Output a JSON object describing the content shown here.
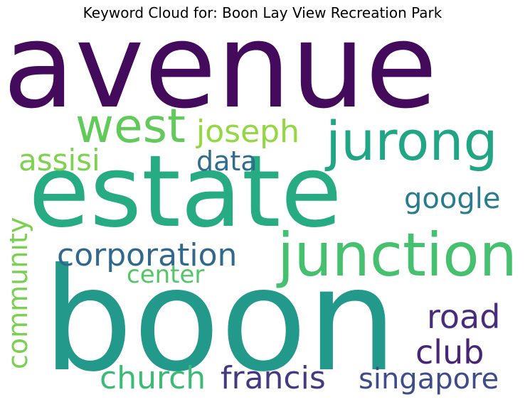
{
  "title": "Keyword Cloud for: Boon Lay View Recreation Park",
  "words": [
    {
      "text": "avenue",
      "color": "#440a5c"
    },
    {
      "text": "estate",
      "color": "#27ab82"
    },
    {
      "text": "boon",
      "color": "#22998a"
    },
    {
      "text": "junction",
      "color": "#45c06f"
    },
    {
      "text": "jurong",
      "color": "#21a685"
    },
    {
      "text": "west",
      "color": "#62ca5a"
    },
    {
      "text": "joseph",
      "color": "#93d741"
    },
    {
      "text": "assisi",
      "color": "#7dd250"
    },
    {
      "text": "data",
      "color": "#2f6c8e"
    },
    {
      "text": "google",
      "color": "#297b8e"
    },
    {
      "text": "corporation",
      "color": "#31688e"
    },
    {
      "text": "center",
      "color": "#55c667"
    },
    {
      "text": "community",
      "color": "#7ad151"
    },
    {
      "text": "road",
      "color": "#472e7c"
    },
    {
      "text": "club",
      "color": "#482576"
    },
    {
      "text": "church",
      "color": "#3bbb75"
    },
    {
      "text": "francis",
      "color": "#443983"
    },
    {
      "text": "singapore",
      "color": "#3e4c8a"
    }
  ]
}
